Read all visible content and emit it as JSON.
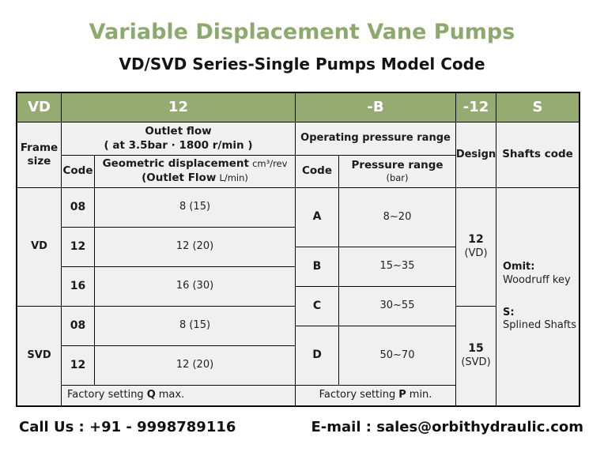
{
  "page": {
    "title": "Variable Displacement Vane Pumps",
    "subtitle": "VD/SVD Series-Single Pumps Model Code"
  },
  "colors": {
    "header_green": "#95ab72",
    "title_green": "#8caa6e",
    "cell_gray": "#f0f0f0"
  },
  "model_code": {
    "frame": "VD",
    "flow": "12",
    "pressure": "-B",
    "design": "-12",
    "shafts": "S"
  },
  "headers": {
    "frame_size": "Frame size",
    "outlet_flow_title": "Outlet flow",
    "outlet_flow_condition": "( at 3.5bar · 1800 r/min )",
    "code": "Code",
    "geometric_displacement": "Geometric displacement",
    "geometric_displacement_unit": "cm³/rev",
    "outlet_flow_sub": "(Outlet Flow",
    "outlet_flow_sub_unit": "L/min)",
    "operating_pressure_range": "Operating pressure range",
    "pressure_code": "Code",
    "pressure_range": "Pressure range",
    "pressure_range_unit": "(bar)",
    "design": "Design",
    "shafts_code": "Shafts code"
  },
  "frame_groups": {
    "vd_label": "VD",
    "svd_label": "SVD"
  },
  "vd_rows": [
    {
      "code": "08",
      "displacement": "8 (15)"
    },
    {
      "code": "12",
      "displacement": "12 (20)"
    },
    {
      "code": "16",
      "displacement": "16 (30)"
    }
  ],
  "svd_rows": [
    {
      "code": "08",
      "displacement": "8 (15)"
    },
    {
      "code": "12",
      "displacement": "12 (20)"
    }
  ],
  "pressure_rows": [
    {
      "code": "A",
      "range": "8~20"
    },
    {
      "code": "B",
      "range": "15~35"
    },
    {
      "code": "C",
      "range": "30~55"
    },
    {
      "code": "D",
      "range": "50~70"
    }
  ],
  "design_options": [
    {
      "value": "12",
      "series": "(VD)"
    },
    {
      "value": "15",
      "series": "(SVD)"
    }
  ],
  "shaft_options": [
    {
      "key": "Omit:",
      "description": "Woodruff key"
    },
    {
      "key": "S:",
      "description": "Splined Shafts"
    }
  ],
  "factory_settings": {
    "flow_prefix": "Factory setting",
    "flow_symbol": "Q",
    "flow_suffix": "max.",
    "pressure_prefix": "Factory setting",
    "pressure_symbol": "P",
    "pressure_suffix": "min."
  },
  "footer": {
    "call": "Call Us : +91 - 9998789116",
    "email": "E-mail : sales@orbithydraulic.com"
  }
}
